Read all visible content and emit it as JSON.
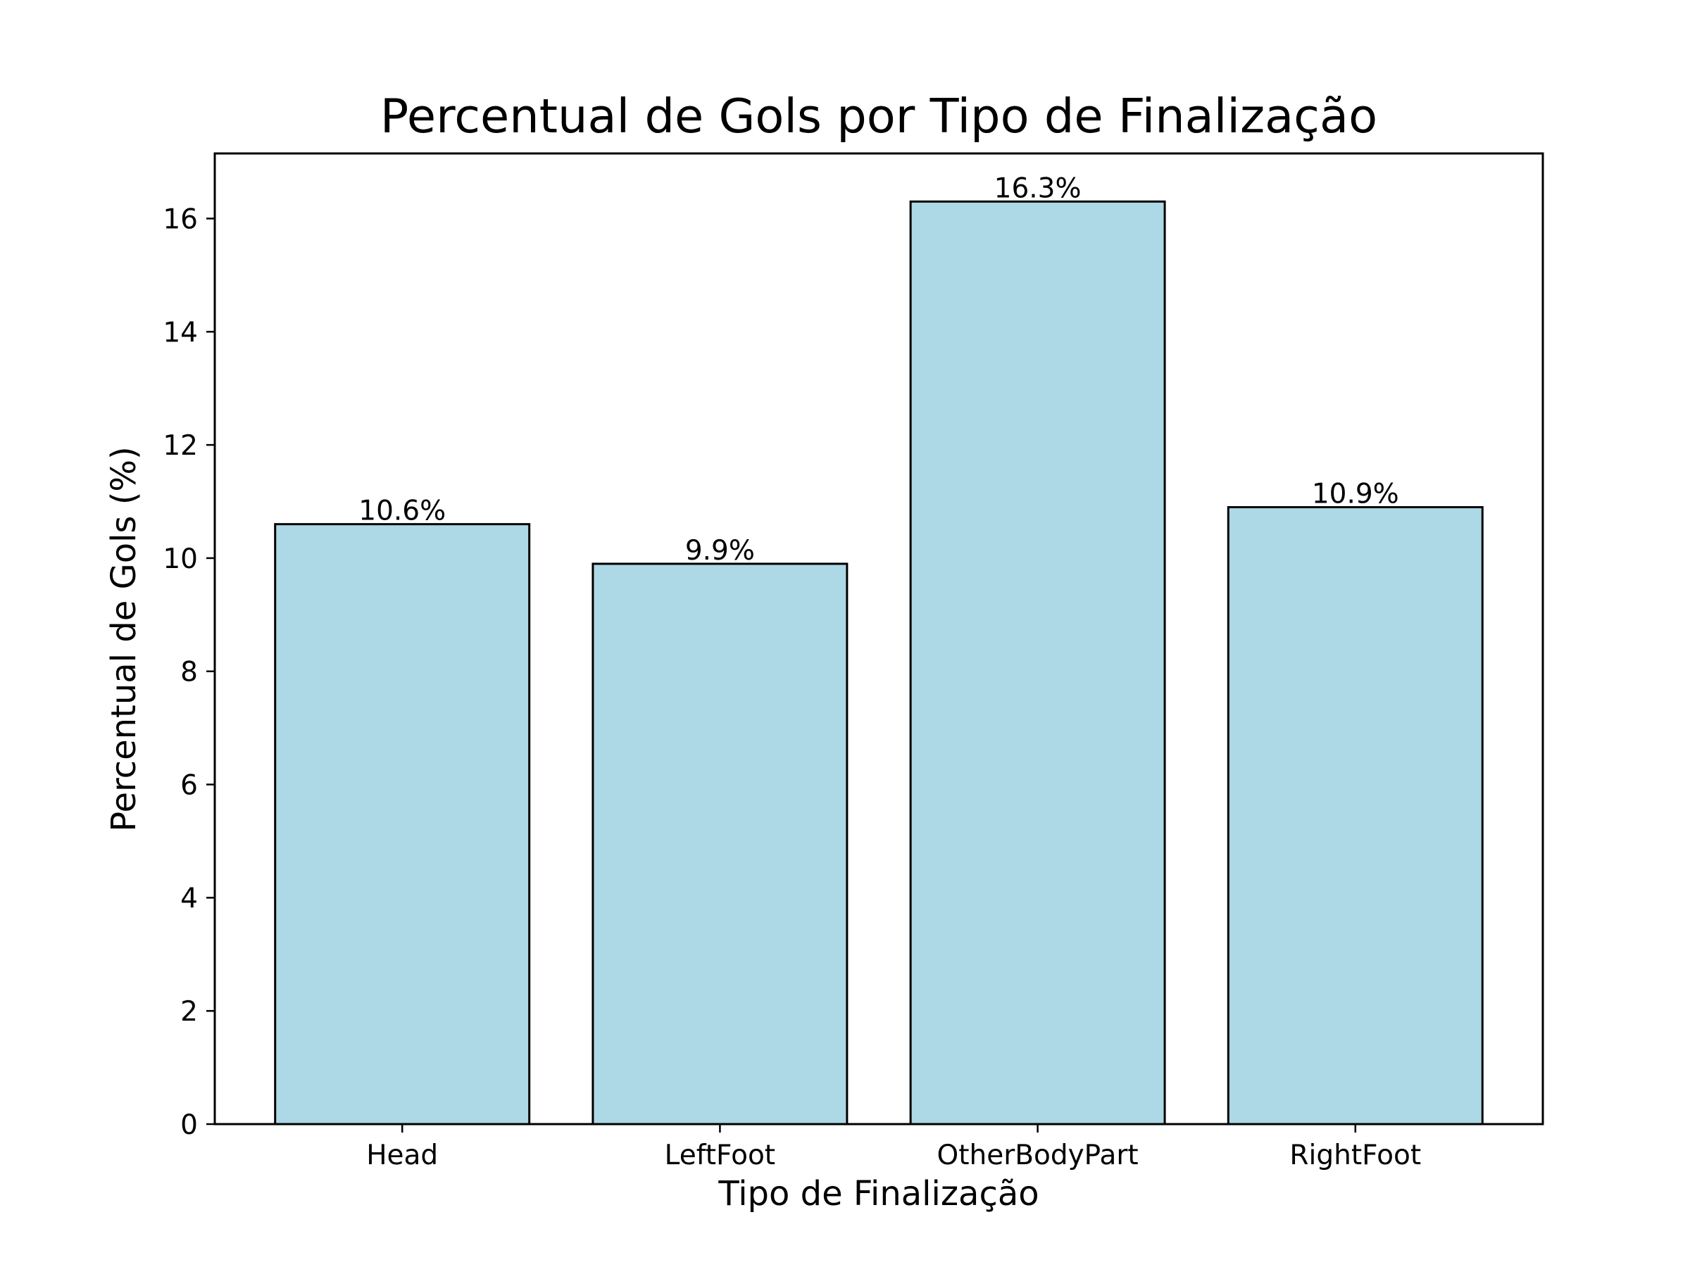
{
  "chart_data": {
    "type": "bar",
    "title": "Percentual de Gols por Tipo de Finalização",
    "xlabel": "Tipo de Finalização",
    "ylabel": "Percentual de Gols (%)",
    "categories": [
      "Head",
      "LeftFoot",
      "OtherBodyPart",
      "RightFoot"
    ],
    "values": [
      10.6,
      9.9,
      16.3,
      10.9
    ],
    "value_labels": [
      "10.6%",
      "9.9%",
      "16.3%",
      "10.9%"
    ],
    "ylim": [
      0,
      17.15
    ],
    "yticks": [
      0,
      2,
      4,
      6,
      8,
      10,
      12,
      14,
      16
    ],
    "grid": false,
    "legend": "none",
    "bar_color": "#ADD8E6",
    "edge_color": "#000000"
  }
}
